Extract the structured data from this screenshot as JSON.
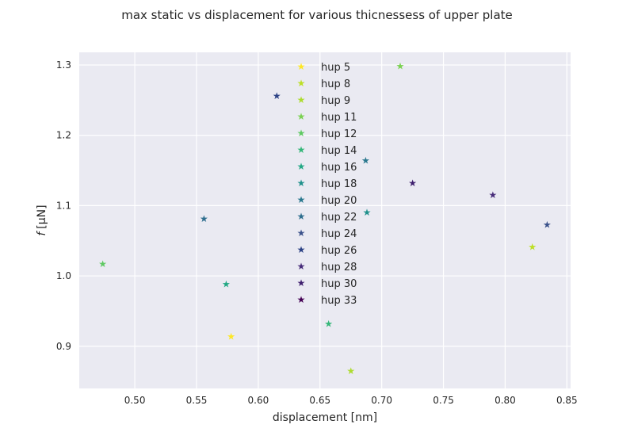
{
  "chart_data": {
    "type": "scatter",
    "title": "max static vs displacement for various thicnessess of upper plate",
    "xlabel": "displacement [nm]",
    "ylabel_italic": "f",
    "ylabel_rest": "[μN]",
    "xlim": [
      0.455,
      0.853
    ],
    "ylim": [
      0.84,
      1.318
    ],
    "xticks": [
      0.5,
      0.55,
      0.6,
      0.65,
      0.7,
      0.75,
      0.8,
      0.85
    ],
    "xtick_labels": [
      "0.50",
      "0.55",
      "0.60",
      "0.65",
      "0.70",
      "0.75",
      "0.80",
      "0.85"
    ],
    "yticks": [
      0.9,
      1.0,
      1.1,
      1.2,
      1.3
    ],
    "ytick_labels": [
      "0.9",
      "1.0",
      "1.1",
      "1.2",
      "1.3"
    ],
    "grid": true,
    "legend_position": "upper-center",
    "marker": "★",
    "series": [
      {
        "name": "hup 5",
        "color": "#fde725",
        "x": 0.578,
        "y": 0.914
      },
      {
        "name": "hup 8",
        "color": "#bddf26",
        "x": 0.822,
        "y": 1.041
      },
      {
        "name": "hup 9",
        "color": "#addc30",
        "x": 0.675,
        "y": 0.865
      },
      {
        "name": "hup 11",
        "color": "#7ad151",
        "x": 0.715,
        "y": 1.298
      },
      {
        "name": "hup 12",
        "color": "#5ec962",
        "x": 0.474,
        "y": 1.017
      },
      {
        "name": "hup 14",
        "color": "#35b779",
        "x": 0.657,
        "y": 0.932
      },
      {
        "name": "hup 16",
        "color": "#22a884",
        "x": 0.574,
        "y": 0.988
      },
      {
        "name": "hup 18",
        "color": "#21918c",
        "x": 0.688,
        "y": 1.09
      },
      {
        "name": "hup 20",
        "color": "#2a788e",
        "x": 0.687,
        "y": 1.164
      },
      {
        "name": "hup 22",
        "color": "#2e6e8e",
        "x": 0.556,
        "y": 1.081
      },
      {
        "name": "hup 24",
        "color": "#3b528b",
        "x": 0.834,
        "y": 1.073
      },
      {
        "name": "hup 26",
        "color": "#2c4285",
        "x": 0.615,
        "y": 1.256
      },
      {
        "name": "hup 28",
        "color": "#472c7a",
        "x": 0.79,
        "y": 1.115
      },
      {
        "name": "hup 30",
        "color": "#3e1f6e",
        "x": 0.725,
        "y": 1.132
      },
      {
        "name": "hup 33",
        "color": "#440154",
        "x": null,
        "y": null
      }
    ]
  }
}
